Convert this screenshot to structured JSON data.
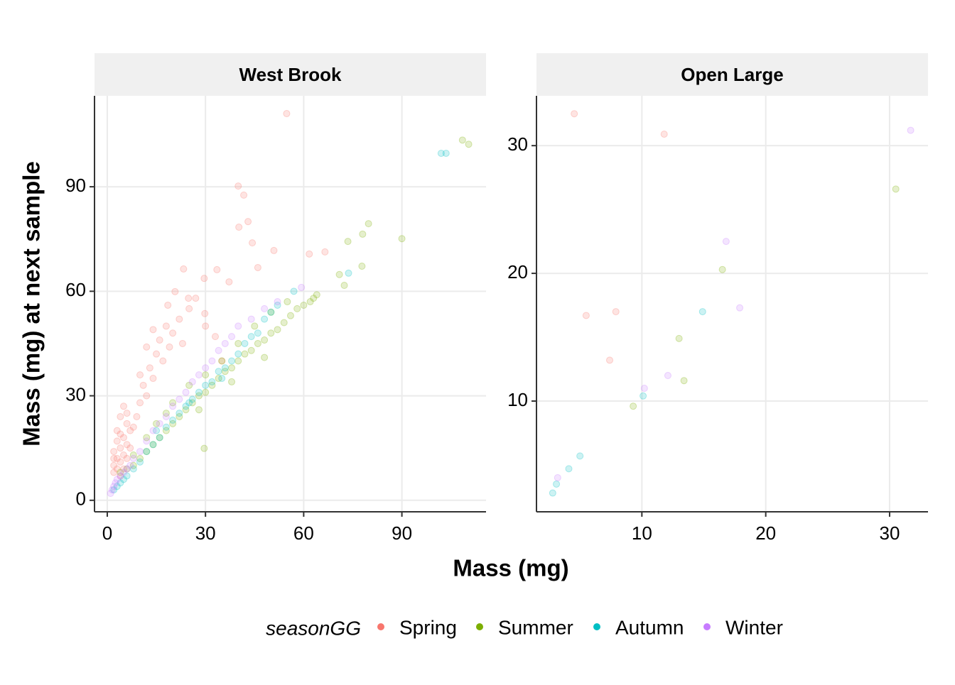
{
  "chart_data": [
    {
      "type": "scatter",
      "title": "West Brook",
      "xlabel": "Mass (mg)",
      "ylabel": "Mass (mg) at next sample",
      "legend_title": "seasonGG",
      "xlim": [
        -3.9,
        115.7
      ],
      "ylim": [
        -3.3,
        116.1
      ],
      "xticks": [
        0,
        30,
        60,
        90
      ],
      "yticks": [
        0,
        30,
        60,
        90
      ],
      "grid": true,
      "opacity": 0.2,
      "series": [
        {
          "name": "Spring",
          "color": "#F8766D",
          "x": [
            2,
            3,
            4,
            5,
            3,
            4,
            5,
            6,
            2,
            3,
            4,
            6,
            5,
            7,
            6,
            3,
            4,
            2,
            7,
            8,
            5,
            2,
            6,
            4,
            9,
            10,
            11,
            12,
            13,
            14,
            15,
            16,
            17,
            18,
            19,
            20,
            22,
            12,
            14,
            10,
            25,
            23,
            27,
            30,
            35,
            33,
            54.8,
            40,
            41.7,
            40.2,
            43,
            44.3,
            50.9,
            46,
            61.7,
            66.5,
            23.3,
            29.6,
            33.5,
            37.2,
            20.7,
            24.8,
            18.5,
            29.8
          ],
          "values": [
            10,
            12,
            15,
            18,
            20,
            24,
            27,
            22,
            14,
            9,
            11,
            16,
            13,
            20,
            25,
            17,
            19,
            8,
            15,
            21,
            9,
            12,
            12,
            7,
            24,
            28,
            33,
            30,
            38,
            35,
            42,
            46,
            40,
            50,
            44,
            48,
            52,
            44,
            49,
            36,
            55,
            45,
            58,
            50,
            40,
            47,
            111,
            90.2,
            87.6,
            78.4,
            80,
            73.9,
            71.7,
            66.8,
            70.7,
            71.3,
            66.4,
            63.7,
            66.2,
            62.7,
            59.9,
            58,
            56,
            53.6
          ]
        },
        {
          "name": "Summer",
          "color": "#7CAE00",
          "x": [
            4,
            6,
            8,
            10,
            12,
            14,
            16,
            18,
            20,
            22,
            24,
            26,
            28,
            30,
            32,
            34,
            36,
            38,
            40,
            42,
            44,
            46,
            48,
            50,
            52,
            54,
            56,
            58,
            60,
            62,
            64,
            15,
            20,
            25,
            30,
            35,
            40,
            45,
            50,
            55,
            8,
            12,
            18,
            28,
            38,
            48,
            108.5,
            110.4,
            90,
            79.8,
            78,
            73.5,
            70.9,
            77.8,
            72.4,
            63,
            29.6
          ],
          "values": [
            8,
            9,
            10,
            12,
            14,
            16,
            18,
            20,
            22,
            24,
            26,
            28,
            30,
            31,
            33,
            35,
            37,
            38,
            40,
            42,
            43,
            45,
            46,
            48,
            49,
            51,
            53,
            55,
            56,
            57,
            59,
            22,
            28,
            33,
            36,
            40,
            45,
            50,
            54,
            57,
            13,
            18,
            25,
            26,
            34,
            41,
            103.4,
            102.2,
            75.1,
            79.4,
            76.4,
            74.3,
            64.8,
            67.2,
            61.7,
            58,
            14.9
          ]
        },
        {
          "name": "Autumn",
          "color": "#00BFC4",
          "x": [
            2,
            3,
            4,
            5,
            6,
            8,
            10,
            12,
            14,
            16,
            18,
            20,
            22,
            24,
            26,
            28,
            30,
            32,
            34,
            36,
            38,
            40,
            42,
            44,
            46,
            48,
            50,
            52,
            57,
            73.7,
            102,
            103.5,
            15,
            25,
            35
          ],
          "values": [
            3,
            4,
            5,
            6,
            7,
            9,
            11,
            14,
            16,
            18,
            21,
            23,
            25,
            27,
            29,
            31,
            33,
            34,
            37,
            38,
            40,
            42,
            45,
            47,
            48,
            52,
            54,
            56,
            60,
            65.2,
            99.6,
            99.6,
            20,
            28,
            35
          ]
        },
        {
          "name": "Winter",
          "color": "#C77CFF",
          "x": [
            1,
            1.5,
            2,
            2.5,
            3,
            4,
            5,
            6,
            7,
            8,
            10,
            12,
            14,
            16,
            18,
            20,
            22,
            24,
            26,
            28,
            30,
            32,
            34,
            36,
            38,
            40,
            44,
            48,
            52,
            59.3
          ],
          "values": [
            2,
            3,
            4,
            5,
            6,
            7,
            8,
            9,
            10,
            12,
            14,
            17,
            20,
            22,
            24,
            27,
            29,
            31,
            34,
            36,
            38,
            40,
            43,
            45,
            47,
            50,
            52,
            55,
            57,
            61.1
          ]
        }
      ]
    },
    {
      "type": "scatter",
      "title": "Open Large",
      "xlim": [
        1.49,
        33.1
      ],
      "ylim": [
        1.33,
        33.9
      ],
      "xticks": [
        10,
        20,
        30
      ],
      "yticks": [
        10,
        20,
        30
      ],
      "grid": true,
      "opacity": 0.2,
      "series": [
        {
          "name": "Spring",
          "color": "#F8766D",
          "x": [
            4.54,
            11.8,
            5.5,
            7.9,
            7.4
          ],
          "values": [
            32.5,
            30.9,
            16.7,
            17.0,
            13.2
          ]
        },
        {
          "name": "Summer",
          "color": "#7CAE00",
          "x": [
            30.5,
            16.5,
            13.0,
            13.4,
            9.3
          ],
          "values": [
            26.6,
            20.3,
            14.9,
            11.6,
            9.6
          ]
        },
        {
          "name": "Autumn",
          "color": "#00BFC4",
          "x": [
            14.9,
            10.1,
            5.0,
            4.1,
            3.1,
            2.8
          ],
          "values": [
            17.0,
            10.4,
            5.7,
            4.7,
            3.5,
            2.8
          ]
        },
        {
          "name": "Winter",
          "color": "#C77CFF",
          "x": [
            31.7,
            16.8,
            17.9,
            12.1,
            10.2,
            3.2
          ],
          "values": [
            31.2,
            22.5,
            17.3,
            12.0,
            11.0,
            4.0
          ]
        }
      ]
    }
  ]
}
